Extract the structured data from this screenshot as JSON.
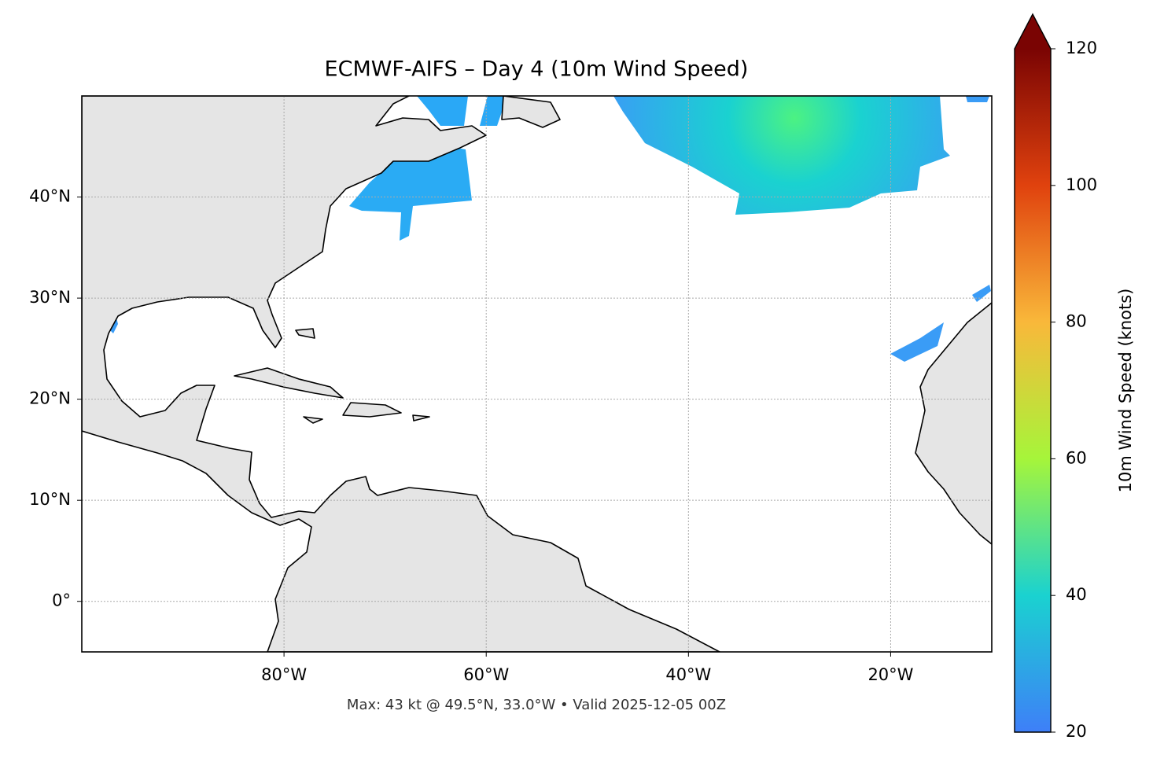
{
  "chart_data": {
    "type": "map",
    "title": "ECMWF-AIFS – Day 4 (10m Wind Speed)",
    "xlim": [
      -100,
      -10
    ],
    "ylim": [
      -5,
      50
    ],
    "xticks": [
      {
        "value": -80,
        "label": "80°W"
      },
      {
        "value": -60,
        "label": "60°W"
      },
      {
        "value": -40,
        "label": "40°W"
      },
      {
        "value": -20,
        "label": "20°W"
      }
    ],
    "yticks": [
      {
        "value": 0,
        "label": "0°"
      },
      {
        "value": 10,
        "label": "10°N"
      },
      {
        "value": 20,
        "label": "20°N"
      },
      {
        "value": 30,
        "label": "30°N"
      },
      {
        "value": 40,
        "label": "40°N"
      }
    ],
    "grid": true,
    "colorbar": {
      "label": "10m Wind Speed (knots)",
      "lim": [
        20,
        120
      ],
      "ticks": [
        20,
        40,
        60,
        80,
        100,
        120
      ],
      "colors": [
        "#3e7ff8",
        "#1ad2d0",
        "#a6f53a",
        "#f9b83a",
        "#e0420e",
        "#7a0403"
      ]
    },
    "footer": "Max: 43 kt @ 49.5°N, 33.0°W • Valid 2025-12-05 00Z"
  }
}
